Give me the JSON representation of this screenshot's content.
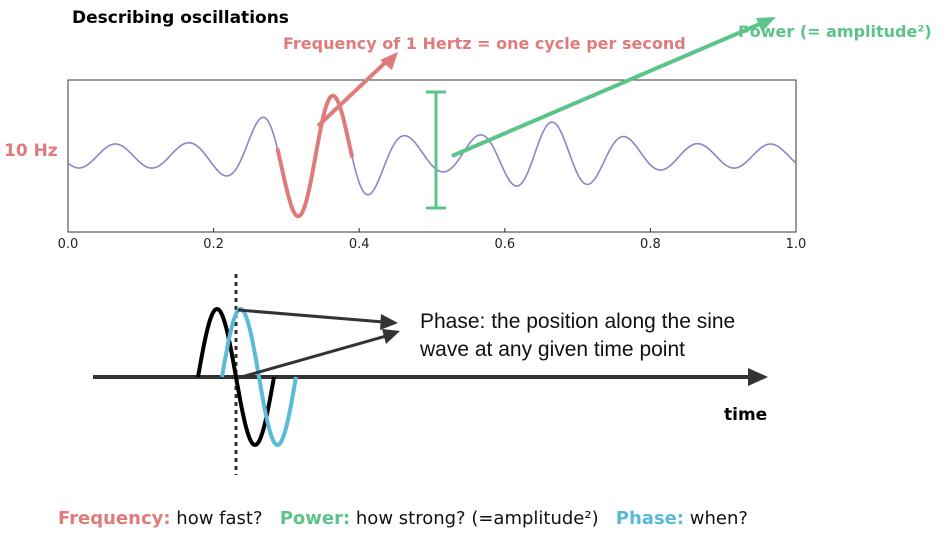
{
  "title": "Describing oscillations",
  "colors": {
    "frequency": "#e07b7b",
    "power": "#5cc48a",
    "phase": "#5bbad8",
    "signal": "#8b84c8",
    "dark": "#333333"
  },
  "top_plot": {
    "freq_side_label": "10 Hz",
    "freq_annotation": "Frequency of 1 Hertz =   one cycle per second",
    "power_annotation": "Power (= amplitude²)",
    "x_ticks": [
      "0.0",
      "0.2",
      "0.4",
      "0.6",
      "0.8",
      "1.0"
    ]
  },
  "phase_diagram": {
    "line1": "Phase: the position along the sine",
    "line2": "wave at any given time point",
    "axis_label": "time"
  },
  "legend": {
    "frequency_key": "Frequency:",
    "frequency_text": " how fast?",
    "power_key": "Power:",
    "power_text": " how strong? (=amplitude²)",
    "phase_key": "Phase:",
    "phase_text": " when?"
  }
}
